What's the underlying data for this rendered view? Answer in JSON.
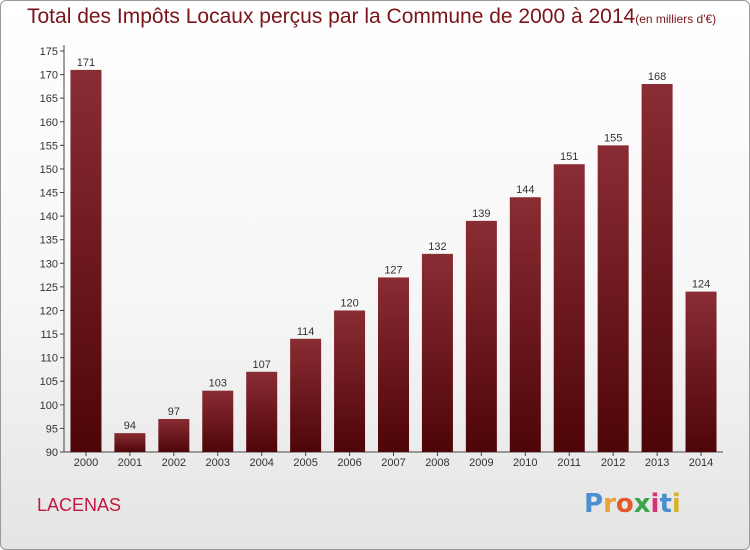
{
  "header": {
    "title": "Total des Impôts Locaux perçus par la Commune de 2000 à 2014",
    "unit": "(en milliers d'€)"
  },
  "footer": {
    "commune": "LACENAS",
    "logo_letters": [
      "P",
      "r",
      "o",
      "x",
      "i",
      "t",
      "i"
    ],
    "logo_colors": [
      "#4a8fd0",
      "#e8a23a",
      "#e35a2a",
      "#3aa64a",
      "#d9307a",
      "#4a8fd0",
      "#d9b22a"
    ]
  },
  "colors": {
    "title": "#7a1418",
    "bar_top": "#8a2c34",
    "bar_bottom": "#4e0508",
    "commune": "#c2183f"
  },
  "chart_data": {
    "type": "bar",
    "title": "Total des Impôts Locaux perçus par la Commune de 2000 à 2014",
    "xlabel": "",
    "ylabel": "",
    "ylim": [
      90,
      175
    ],
    "yticks": [
      90,
      95,
      100,
      105,
      110,
      115,
      120,
      125,
      130,
      135,
      140,
      145,
      150,
      155,
      160,
      165,
      170,
      175
    ],
    "grid": false,
    "categories": [
      "2000",
      "2001",
      "2002",
      "2003",
      "2004",
      "2005",
      "2006",
      "2007",
      "2008",
      "2009",
      "2010",
      "2011",
      "2012",
      "2013",
      "2014"
    ],
    "values": [
      171,
      94,
      97,
      103,
      107,
      114,
      120,
      127,
      132,
      139,
      144,
      151,
      155,
      168,
      124
    ]
  }
}
